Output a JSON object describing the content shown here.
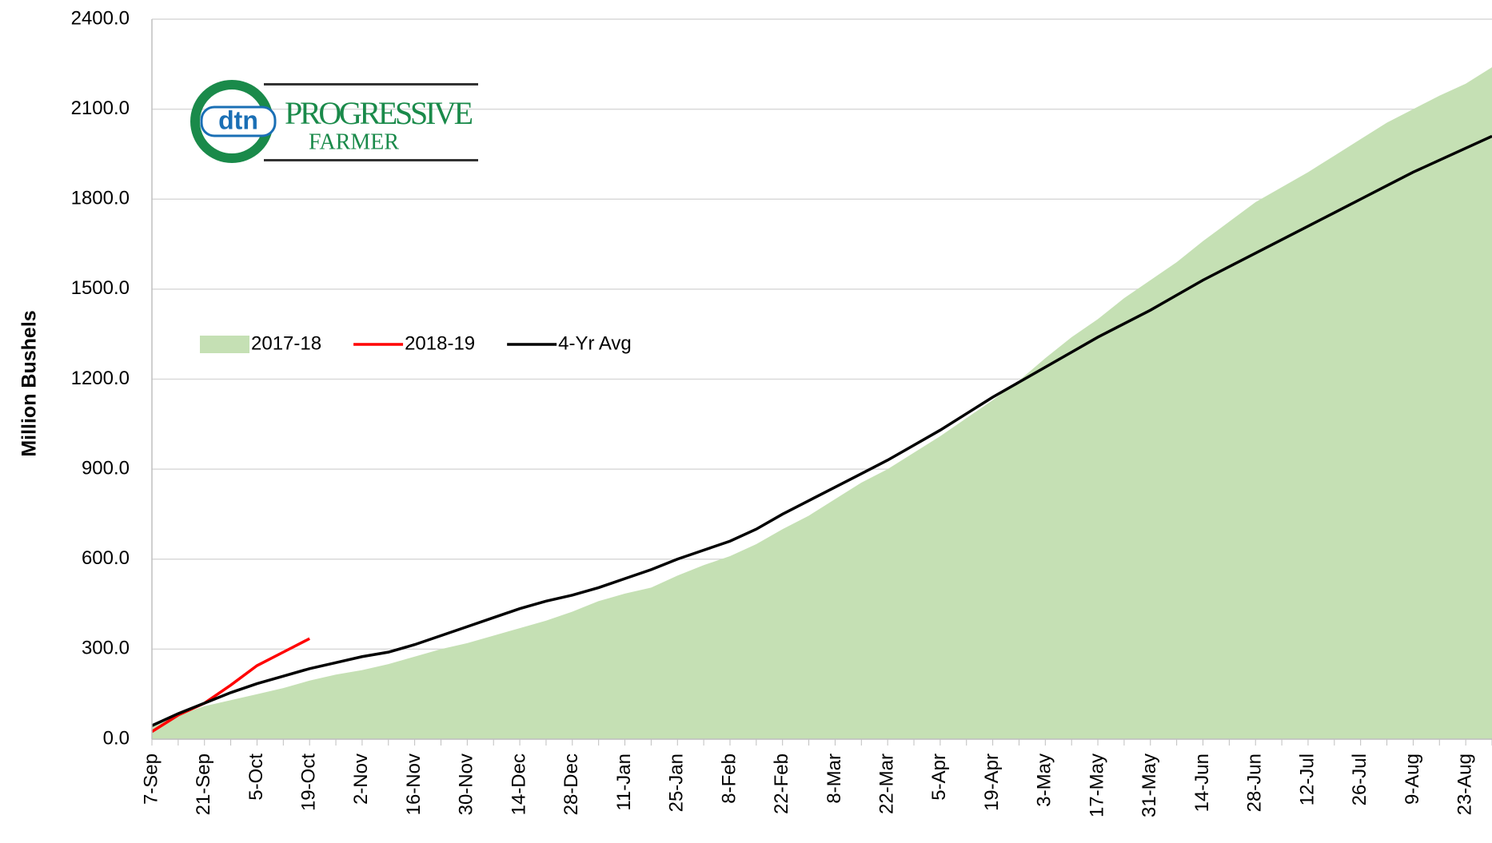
{
  "logo": {
    "badge": "dtn",
    "line1": "PROGRESSIVE",
    "line2": "FARMER"
  },
  "chart_data": {
    "type": "line",
    "y_label": "Million Bushels",
    "categories": [
      "7-Sep",
      null,
      "21-Sep",
      null,
      "5-Oct",
      null,
      "19-Oct",
      null,
      "2-Nov",
      null,
      "16-Nov",
      null,
      "30-Nov",
      null,
      "14-Dec",
      null,
      "28-Dec",
      null,
      "11-Jan",
      null,
      "25-Jan",
      null,
      "8-Feb",
      null,
      "22-Feb",
      null,
      "8-Mar",
      null,
      "22-Mar",
      null,
      "5-Apr",
      null,
      "19-Apr",
      null,
      "3-May",
      null,
      "17-May",
      null,
      "31-May",
      null,
      "14-Jun",
      null,
      "28-Jun",
      null,
      "12-Jul",
      null,
      "26-Jul",
      null,
      "9-Aug",
      null,
      "23-Aug",
      null
    ],
    "series": [
      {
        "name": "2017-18",
        "type": "area",
        "color": "#c5e0b4",
        "values": [
          40,
          80,
          110,
          130,
          150,
          170,
          195,
          215,
          230,
          250,
          275,
          300,
          320,
          345,
          370,
          395,
          425,
          460,
          485,
          505,
          545,
          580,
          610,
          650,
          700,
          745,
          800,
          855,
          900,
          955,
          1010,
          1070,
          1130,
          1195,
          1270,
          1340,
          1400,
          1470,
          1530,
          1590,
          1660,
          1725,
          1790,
          1840,
          1890,
          1945,
          2000,
          2055,
          2100,
          2145,
          2185,
          2240
        ]
      },
      {
        "name": "2018-19",
        "type": "line",
        "color": "#ff0000",
        "values": [
          25,
          80,
          120,
          180,
          245,
          290,
          335,
          null,
          null,
          null,
          null,
          null,
          null,
          null,
          null,
          null,
          null,
          null,
          null,
          null,
          null,
          null,
          null,
          null,
          null,
          null,
          null,
          null,
          null,
          null,
          null,
          null,
          null,
          null,
          null,
          null,
          null,
          null,
          null,
          null,
          null,
          null,
          null,
          null,
          null,
          null,
          null,
          null,
          null,
          null,
          null,
          null
        ]
      },
      {
        "name": "4-Yr Avg",
        "type": "line",
        "color": "#000000",
        "values": [
          45,
          85,
          120,
          155,
          185,
          210,
          235,
          255,
          275,
          290,
          315,
          345,
          375,
          405,
          435,
          460,
          480,
          505,
          535,
          565,
          600,
          630,
          660,
          700,
          750,
          795,
          840,
          885,
          930,
          980,
          1030,
          1085,
          1140,
          1190,
          1240,
          1290,
          1340,
          1385,
          1430,
          1480,
          1530,
          1575,
          1620,
          1665,
          1710,
          1755,
          1800,
          1845,
          1890,
          1930,
          1970,
          2010
        ]
      }
    ],
    "ylim": [
      0,
      2400
    ],
    "yticks": [
      {
        "value": 0,
        "label": "0.0"
      },
      {
        "value": 300,
        "label": "300.0"
      },
      {
        "value": 600,
        "label": "600.0"
      },
      {
        "value": 900,
        "label": "900.0"
      },
      {
        "value": 1200,
        "label": "1200.0"
      },
      {
        "value": 1500,
        "label": "1500.0"
      },
      {
        "value": 1800,
        "label": "1800.0"
      },
      {
        "value": 2100,
        "label": "2100.0"
      },
      {
        "value": 2400,
        "label": "2400.0"
      }
    ],
    "grid": true,
    "legend": "left"
  }
}
